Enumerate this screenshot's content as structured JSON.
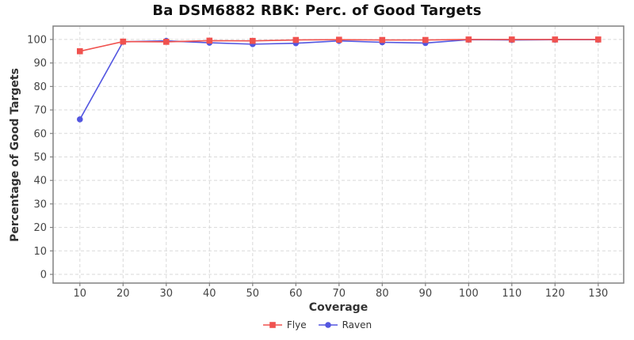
{
  "colors": {
    "flye": "#f0524f",
    "raven": "#5356e0",
    "grid": "#d9d9d9",
    "border": "#808080",
    "tick_text": "#444444",
    "axis_label_text": "#333333",
    "title_text": "#111111",
    "legend_text": "#333333",
    "background": "#ffffff"
  },
  "chart_data": {
    "type": "line",
    "title": "Ba DSM6882 RBK: Perc. of Good Targets",
    "xlabel": "Coverage",
    "ylabel": "Percentage of Good Targets",
    "x": [
      10,
      20,
      30,
      40,
      50,
      60,
      70,
      80,
      90,
      100,
      110,
      120,
      130
    ],
    "series": [
      {
        "name": "Flye",
        "marker": "square",
        "color": "#f0524f",
        "values": [
          95.0,
          99.1,
          99.0,
          99.5,
          99.4,
          99.8,
          99.9,
          99.8,
          99.8,
          100,
          100,
          100,
          100
        ]
      },
      {
        "name": "Raven",
        "marker": "circle",
        "color": "#5356e0",
        "values": [
          66.0,
          99.0,
          99.4,
          98.6,
          98.0,
          98.4,
          99.4,
          98.8,
          98.5,
          99.9,
          99.8,
          99.9,
          99.9
        ]
      }
    ],
    "xticks": [
      10,
      20,
      30,
      40,
      50,
      60,
      70,
      80,
      90,
      100,
      110,
      120,
      130
    ],
    "yticks": [
      0,
      10,
      20,
      30,
      40,
      50,
      60,
      70,
      80,
      90,
      100
    ],
    "xlim": [
      3.8,
      135.9
    ],
    "ylim": [
      -3.7,
      105.7
    ],
    "grid": true,
    "grid_style": "dashed",
    "legend_position": "bottom-center"
  }
}
